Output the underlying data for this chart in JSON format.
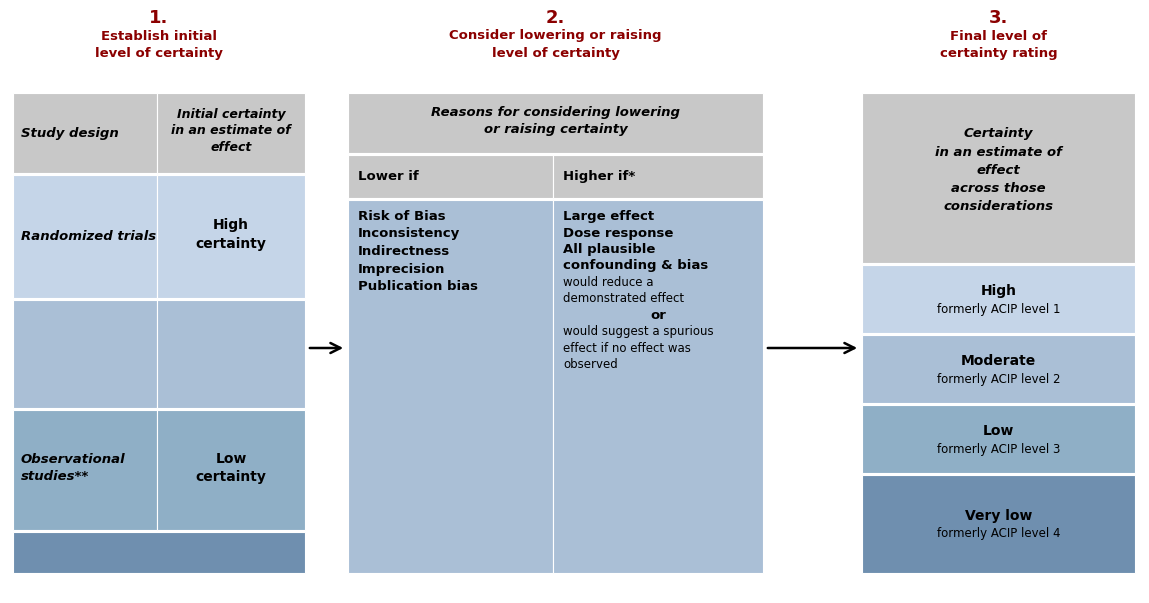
{
  "title_color": "#8B0000",
  "black": "#000000",
  "bg_white": "#FFFFFF",
  "gray": "#C8C8C8",
  "lb1": "#C5D5E8",
  "lb2": "#AABFD6",
  "mb": "#8FAFC6",
  "db": "#6F8FAF",
  "s1_num": "1.",
  "s1_title": "Establish initial\nlevel of certainty",
  "s2_num": "2.",
  "s2_title": "Consider lowering or raising\nlevel of certainty",
  "s3_num": "3.",
  "s3_title": "Final level of\ncertainty rating",
  "col1_hdr": "Study design",
  "col2_hdr": "Initial certainty\nin an estimate of\neffect",
  "col3_hdr": "Reasons for considering lowering\nor raising certainty",
  "col3a_hdr": "Lower if",
  "col3b_hdr": "Higher if*",
  "col4_hdr": "Certainty\nin an estimate of\neffect\nacross those\nconsiderations",
  "r1c1": "Randomized trials",
  "r1c2": "High\ncertainty",
  "r3c1": "Observational\nstudies**",
  "r3c2": "Low\ncertainty",
  "lower_lines": [
    {
      "text": "Risk of Bias",
      "bold": true
    },
    {
      "text": "Inconsistency",
      "bold": true
    },
    {
      "text": "Indirectness",
      "bold": true
    },
    {
      "text": "Imprecision",
      "bold": true
    },
    {
      "text": "Publication bias",
      "bold": true
    }
  ],
  "higher_lines": [
    {
      "text": "Large effect",
      "bold": true,
      "center": false
    },
    {
      "text": "Dose response",
      "bold": true,
      "center": false
    },
    {
      "text": "All plausible",
      "bold": true,
      "center": false
    },
    {
      "text": "confounding & bias",
      "bold": true,
      "center": false
    },
    {
      "text": "would reduce a",
      "bold": false,
      "center": false
    },
    {
      "text": "demonstrated effect",
      "bold": false,
      "center": false
    },
    {
      "text": "or",
      "bold": true,
      "center": true
    },
    {
      "text": "would suggest a spurious",
      "bold": false,
      "center": false
    },
    {
      "text": "effect if no effect was",
      "bold": false,
      "center": false
    },
    {
      "text": "observed",
      "bold": false,
      "center": false
    }
  ],
  "right_rows": [
    {
      "label": "High",
      "sub": "formerly ACIP level 1",
      "color": "#C5D5E8"
    },
    {
      "label": "Moderate",
      "sub": "formerly ACIP level 2",
      "color": "#AABFD6"
    },
    {
      "label": "Low",
      "sub": "formerly ACIP level 3",
      "color": "#8FAFC6"
    },
    {
      "label": "Very low",
      "sub": "formerly ACIP level 4",
      "color": "#6F8FAF"
    }
  ],
  "figw": 11.49,
  "figh": 6.03,
  "dpi": 100
}
